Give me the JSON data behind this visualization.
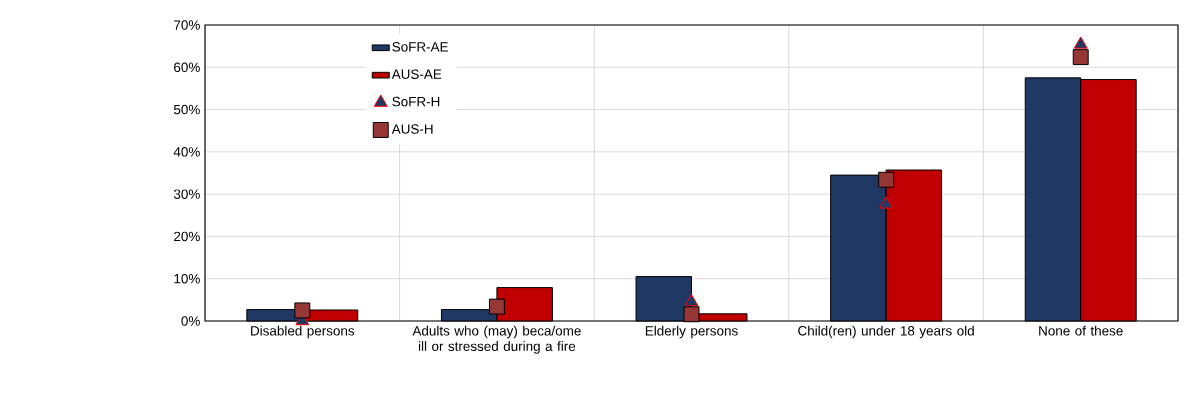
{
  "chart_data": {
    "type": "bar",
    "categories": [
      "Disabled persons",
      "Adults who (may) beca/ome ill or stressed during a fire",
      "Elderly persons",
      "Child(ren) under 18 years old",
      "None of these"
    ],
    "series": [
      {
        "name": "SoFR-AE",
        "color": "#1f3864",
        "values": [
          0.027,
          0.027,
          0.105,
          0.345,
          0.575
        ]
      },
      {
        "name": "AUS-AE",
        "color": "#c00000",
        "values": [
          0.026,
          0.079,
          0.017,
          0.357,
          0.571
        ]
      },
      {
        "name": "SoFR-H",
        "type": "scatter",
        "marker": "triangle",
        "color": "#1f3864",
        "values": [
          0.0,
          null,
          0.045,
          0.276,
          0.654
        ]
      },
      {
        "name": "AUS-H",
        "type": "scatter",
        "marker": "square",
        "color": "#953735",
        "values": [
          0.025,
          0.034,
          0.016,
          0.334,
          0.624
        ]
      }
    ],
    "ylim": [
      0,
      0.7
    ],
    "yticks": [
      {
        "value": 0,
        "label": "0%"
      },
      {
        "value": 0.1,
        "label": "10%"
      },
      {
        "value": 0.2,
        "label": "20%"
      },
      {
        "value": 0.3,
        "label": "30%"
      },
      {
        "value": 0.4,
        "label": "40%"
      },
      {
        "value": 0.5,
        "label": "50%"
      },
      {
        "value": 0.6,
        "label": "60%"
      },
      {
        "value": 0.7,
        "label": "70%"
      }
    ],
    "grid": true,
    "legend": "top left"
  }
}
